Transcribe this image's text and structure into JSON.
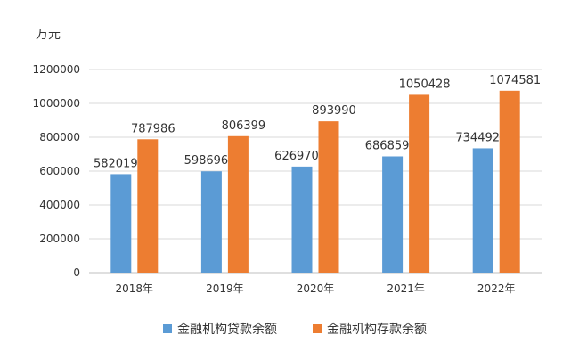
{
  "chart_data": {
    "type": "bar",
    "title": "",
    "unit_label": "万元",
    "xlabel": "",
    "ylabel": "",
    "categories": [
      "2018年",
      "2019年",
      "2020年",
      "2021年",
      "2022年"
    ],
    "series": [
      {
        "name": "金融机构贷款余额",
        "color": "#5B9BD5",
        "values": [
          582019,
          598696,
          626970,
          686859,
          734492
        ],
        "labels": [
          "582019",
          "598696",
          "626970",
          "686859",
          "734492"
        ]
      },
      {
        "name": "金融机构存款余额",
        "color": "#ED7D31",
        "values": [
          787986,
          806399,
          893990,
          1050428,
          1074581
        ],
        "labels": [
          "787986",
          "806399",
          "893990",
          "1050428",
          "1074581"
        ]
      }
    ],
    "ylim": [
      0,
      1200000
    ],
    "yticks": [
      0,
      200000,
      400000,
      600000,
      800000,
      1000000,
      1200000
    ],
    "ytick_labels": [
      "0",
      "200000",
      "400000",
      "600000",
      "800000",
      "1000000",
      "1200000"
    ],
    "grid": true,
    "gridline_color": "#D9D9D9",
    "legend_position": "bottom"
  }
}
